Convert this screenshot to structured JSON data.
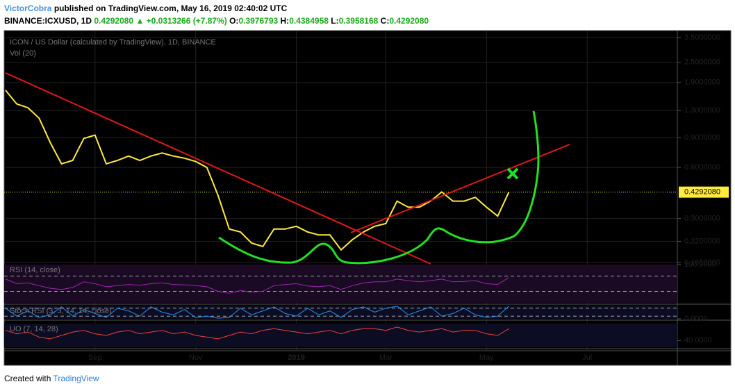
{
  "header": {
    "author": "VictorCobra",
    "published": "published on TradingView.com, May 16, 2019 02:40:02 UTC",
    "symbol": "BINANCE:ICXUSD, 1D",
    "last": "0.4292080",
    "change": "▲ +0.0313266 (+7.87%)",
    "o_label": "O:",
    "o": "0.3976793",
    "h_label": "H:",
    "h": "0.4384958",
    "l_label": "L:",
    "l": "0.3958168",
    "c_label": "C:",
    "c": "0.4292080"
  },
  "footer": {
    "created": "Created with",
    "brand": "TradingView"
  },
  "chart_data": [
    {
      "type": "line",
      "title": "ICON / US Dollar (calculated by TradingView), 1D, BINANCE",
      "subtitle": "Vol (20)",
      "log_scale": true,
      "grid": true,
      "categories": [
        null,
        null,
        null,
        null,
        null,
        null,
        null,
        null,
        "Sep",
        null,
        null,
        null,
        null,
        null,
        null,
        null,
        null,
        "Nov",
        null,
        null,
        null,
        null,
        null,
        null,
        null,
        null,
        "2019",
        null,
        null,
        null,
        null,
        null,
        null,
        null,
        "Mar",
        null,
        null,
        null,
        null,
        null,
        null,
        null,
        null,
        "May",
        null,
        null,
        null,
        null,
        null,
        null,
        null,
        null,
        "Jul",
        null,
        null,
        null,
        null,
        null,
        null,
        null
      ],
      "series": [
        {
          "name": "ICON / US Dollar",
          "color": "#ffeb3b",
          "values": [
            1.71,
            1.42,
            1.35,
            1.17,
            0.84,
            0.63,
            0.66,
            0.89,
            0.93,
            0.63,
            0.66,
            0.7,
            0.66,
            0.7,
            0.73,
            0.7,
            0.68,
            0.65,
            0.6,
            0.41,
            0.26,
            0.25,
            0.215,
            0.205,
            0.26,
            0.26,
            0.27,
            0.25,
            0.24,
            0.24,
            0.196,
            0.225,
            0.25,
            0.27,
            0.28,
            0.38,
            0.35,
            0.35,
            0.38,
            0.43,
            0.38,
            0.38,
            0.4,
            0.35,
            0.31,
            0.429208,
            null,
            null,
            null,
            null,
            null,
            null,
            null,
            null,
            null,
            null,
            null,
            null,
            null,
            null
          ]
        }
      ],
      "ylim": [
        0.162,
        3.81
      ],
      "yticks": [
        {
          "value": 0.165,
          "label": "0.1650000"
        },
        {
          "value": 0.22,
          "label": "0.2200000"
        },
        {
          "value": 0.3,
          "label": "0.3000000"
        },
        {
          "value": 0.6,
          "label": "0.6000000"
        },
        {
          "value": 0.9,
          "label": "0.9000000"
        },
        {
          "value": 1.3,
          "label": "1.3000000"
        },
        {
          "value": 1.9,
          "label": "1.9000000"
        },
        {
          "value": 2.5,
          "label": "2.5000000"
        },
        {
          "value": 3.5,
          "label": "3.5000000"
        }
      ],
      "last_price": {
        "value": 0.429208,
        "label": "0.4292080"
      }
    },
    {
      "type": "line",
      "title": "RSI (14, close)",
      "series": [
        {
          "name": "RSI",
          "color": "#9c27b0",
          "values": [
            62,
            50,
            52,
            45,
            38,
            35,
            40,
            55,
            50,
            42,
            45,
            48,
            46,
            50,
            52,
            48,
            47,
            45,
            42,
            30,
            25,
            32,
            28,
            30,
            45,
            48,
            50,
            44,
            42,
            45,
            35,
            45,
            52,
            55,
            55,
            62,
            58,
            55,
            58,
            62,
            55,
            56,
            58,
            50,
            48,
            66,
            null,
            null,
            null,
            null,
            null,
            null,
            null,
            null,
            null,
            null,
            null,
            null,
            null,
            null
          ]
        }
      ],
      "ylim": [
        0,
        100
      ],
      "yticks": [
        {
          "value": 100,
          "label": "100.0000"
        }
      ],
      "bands": [
        30,
        70
      ]
    },
    {
      "type": "line",
      "title": "Stoch RSI (3, 3, 14, 14, close)",
      "series": [
        {
          "name": "Stoch RSI",
          "color": "#2196f3",
          "values": [
            80,
            20,
            60,
            10,
            30,
            90,
            20,
            70,
            40,
            10,
            80,
            60,
            20,
            90,
            50,
            30,
            70,
            10,
            20,
            5,
            10,
            80,
            30,
            60,
            90,
            40,
            20,
            80,
            30,
            60,
            10,
            70,
            90,
            50,
            80,
            95,
            30,
            60,
            90,
            20,
            40,
            80,
            30,
            10,
            20,
            95,
            null,
            null,
            null,
            null,
            null,
            null,
            null,
            null,
            null,
            null,
            null,
            null,
            null,
            null
          ]
        }
      ],
      "ylim": [
        0,
        100
      ],
      "yticks": [
        {
          "value": 0,
          "label": "0.0000"
        }
      ],
      "bands": [
        20,
        80
      ]
    },
    {
      "type": "line",
      "title": "UO (7, 14, 28)",
      "series": [
        {
          "name": "UO",
          "color": "#f44336",
          "values": [
            46,
            44,
            45,
            42,
            41,
            43,
            45,
            46,
            44,
            43,
            45,
            46,
            44,
            45,
            46,
            44,
            45,
            43,
            42,
            41,
            43,
            45,
            44,
            46,
            47,
            46,
            45,
            44,
            45,
            46,
            44,
            46,
            47,
            47,
            46,
            48,
            46,
            45,
            46,
            47,
            45,
            46,
            46,
            44,
            43,
            47,
            null,
            null,
            null,
            null,
            null,
            null,
            null,
            null,
            null,
            null,
            null,
            null,
            null,
            null
          ]
        }
      ],
      "ylim": [
        36,
        50
      ],
      "yticks": [
        {
          "value": 40,
          "label": "40.0000"
        }
      ]
    }
  ]
}
